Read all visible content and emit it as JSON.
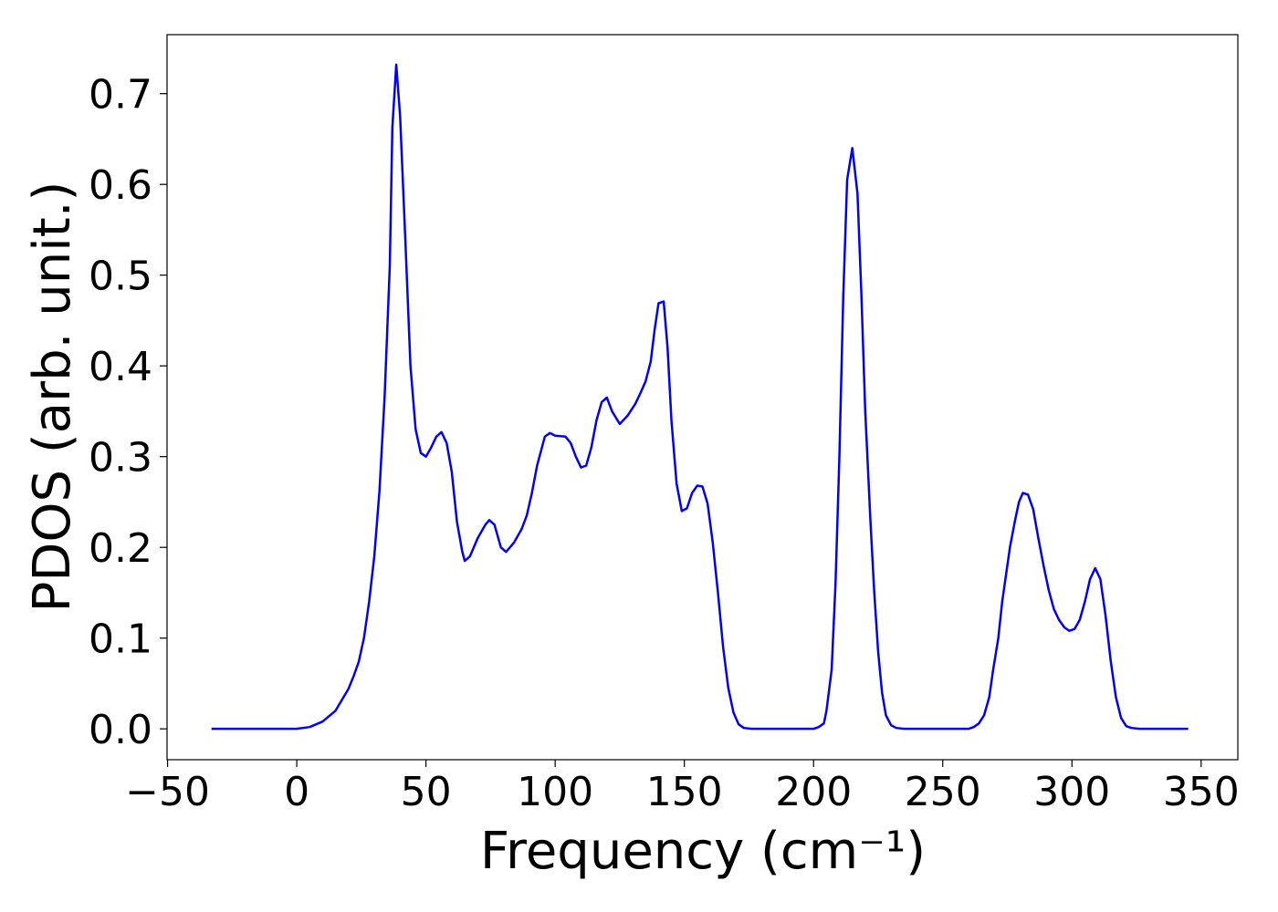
{
  "chart_data": {
    "type": "line",
    "xlabel": "Frequency (cm⁻¹)",
    "ylabel": "PDOS (arb. unit.)",
    "x": [
      -33,
      0,
      5,
      10,
      15,
      20,
      22,
      24,
      26,
      28,
      30,
      32,
      34,
      36,
      37,
      38.5,
      40,
      42,
      44,
      46,
      48,
      50,
      52,
      54,
      56,
      58,
      60,
      62,
      64,
      65,
      67,
      70,
      73,
      74.5,
      76.5,
      79,
      81,
      84,
      87,
      89,
      91,
      93,
      96,
      98,
      100,
      104,
      106,
      108,
      110,
      112,
      114,
      116,
      118,
      120,
      122,
      125,
      128,
      131,
      133,
      135,
      137,
      138.5,
      140,
      142,
      143.5,
      145,
      147,
      149,
      151,
      153,
      155,
      157,
      159,
      161,
      163,
      165,
      167,
      169,
      171,
      173,
      176,
      200,
      202,
      204,
      205,
      207,
      208.5,
      210,
      211.5,
      213,
      215,
      217,
      218.5,
      220,
      222,
      223.5,
      225,
      226.5,
      228,
      230,
      232,
      235,
      260,
      262,
      264,
      266,
      268,
      269.5,
      271.5,
      273,
      274.5,
      276,
      278,
      279.5,
      281,
      283,
      285,
      287,
      289,
      291,
      293,
      295,
      297,
      299,
      301,
      303,
      305,
      307,
      309,
      311,
      313,
      315,
      317,
      319,
      321,
      323,
      326,
      345
    ],
    "values": [
      0,
      0,
      0.002,
      0.008,
      0.02,
      0.044,
      0.058,
      0.074,
      0.1,
      0.14,
      0.19,
      0.262,
      0.366,
      0.51,
      0.663,
      0.732,
      0.675,
      0.54,
      0.4,
      0.33,
      0.304,
      0.3,
      0.31,
      0.322,
      0.327,
      0.315,
      0.283,
      0.228,
      0.196,
      0.185,
      0.19,
      0.21,
      0.225,
      0.23,
      0.225,
      0.2,
      0.195,
      0.205,
      0.22,
      0.235,
      0.26,
      0.29,
      0.322,
      0.326,
      0.323,
      0.322,
      0.315,
      0.3,
      0.288,
      0.29,
      0.31,
      0.34,
      0.36,
      0.365,
      0.35,
      0.336,
      0.345,
      0.358,
      0.37,
      0.383,
      0.405,
      0.44,
      0.469,
      0.471,
      0.42,
      0.34,
      0.27,
      0.24,
      0.243,
      0.26,
      0.268,
      0.267,
      0.248,
      0.205,
      0.15,
      0.09,
      0.045,
      0.018,
      0.005,
      0.001,
      0,
      0,
      0.002,
      0.006,
      0.02,
      0.065,
      0.16,
      0.3,
      0.477,
      0.605,
      0.64,
      0.59,
      0.48,
      0.35,
      0.23,
      0.15,
      0.085,
      0.04,
      0.015,
      0.004,
      0.001,
      0,
      0,
      0.002,
      0.006,
      0.015,
      0.035,
      0.065,
      0.1,
      0.14,
      0.17,
      0.2,
      0.23,
      0.25,
      0.26,
      0.258,
      0.242,
      0.21,
      0.18,
      0.153,
      0.132,
      0.12,
      0.112,
      0.108,
      0.11,
      0.12,
      0.14,
      0.165,
      0.177,
      0.165,
      0.125,
      0.075,
      0.035,
      0.012,
      0.003,
      0.001,
      0,
      0
    ],
    "color": "#0000ff",
    "xlim": [
      -50.2,
      364.2
    ],
    "ylim": [
      -0.034,
      0.765
    ],
    "xticks": [
      {
        "value": -50,
        "label": "−50"
      },
      0,
      50,
      100,
      150,
      200,
      250,
      300,
      350
    ],
    "yticks": [
      {
        "value": 0,
        "label": "0.0"
      },
      0.1,
      0.2,
      0.3,
      0.4,
      0.5,
      0.6,
      0.7
    ],
    "grid": false
  }
}
